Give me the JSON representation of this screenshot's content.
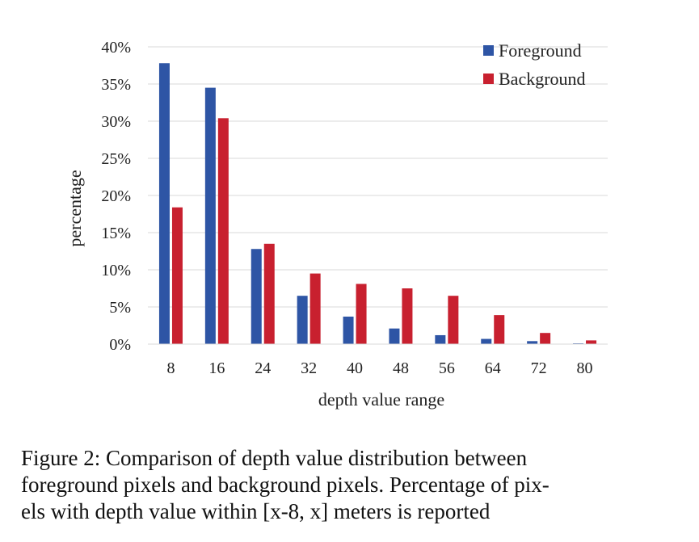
{
  "chart_data": {
    "type": "bar",
    "title": "",
    "xlabel": "depth value range",
    "ylabel": "percentage",
    "categories": [
      "8",
      "16",
      "24",
      "32",
      "40",
      "48",
      "56",
      "64",
      "72",
      "80"
    ],
    "series": [
      {
        "name": "Foreground",
        "color": "#2E55A5",
        "values": [
          37.8,
          34.5,
          12.8,
          6.5,
          3.7,
          2.1,
          1.2,
          0.7,
          0.4,
          0.1
        ]
      },
      {
        "name": "Background",
        "color": "#C8202F",
        "values": [
          18.4,
          30.4,
          13.5,
          9.5,
          8.1,
          7.5,
          6.5,
          3.9,
          1.5,
          0.5
        ]
      }
    ],
    "ylim": [
      0,
      40
    ],
    "yticks": [
      0,
      5,
      10,
      15,
      20,
      25,
      30,
      35,
      40
    ],
    "ytick_format": "percent",
    "grid": true,
    "legend_position": "top-right"
  },
  "caption": {
    "line1": "Figure 2: Comparison of depth value distribution between",
    "line2": "foreground pixels and background pixels. Percentage of pix-",
    "line3": "els with depth value within [x-8, x] meters is reported"
  }
}
